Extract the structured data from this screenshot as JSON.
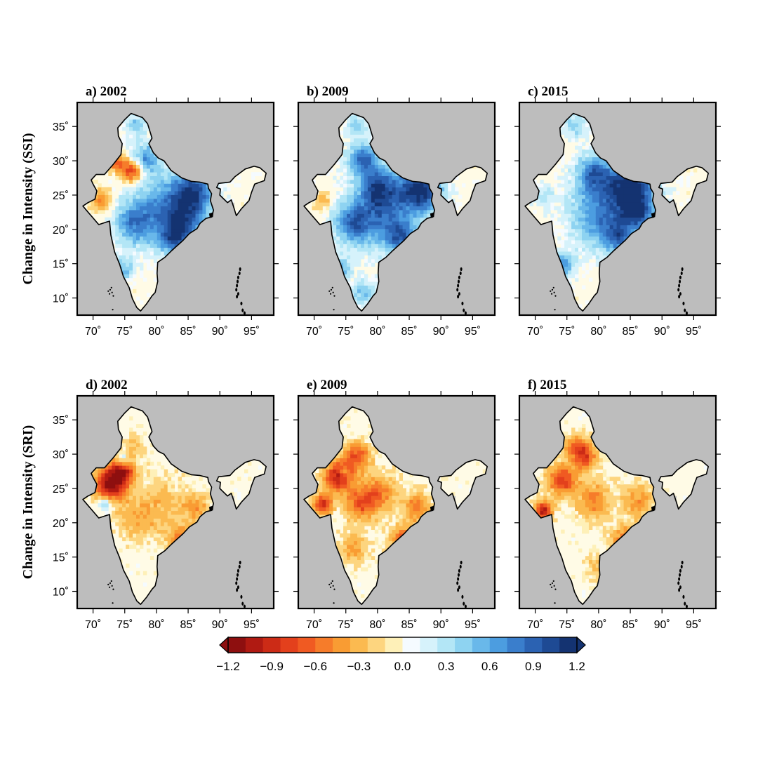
{
  "row_labels": [
    "Change in Intensity (SSI)",
    "Change in Intensity (SRI)"
  ],
  "panels": [
    {
      "id": "a",
      "title": "a) 2002",
      "index": "SSI",
      "year": 2002
    },
    {
      "id": "b",
      "title": "b) 2009",
      "index": "SSI",
      "year": 2009
    },
    {
      "id": "c",
      "title": "c) 2015",
      "index": "SSI",
      "year": 2015
    },
    {
      "id": "d",
      "title": "d) 2002",
      "index": "SRI",
      "year": 2002
    },
    {
      "id": "e",
      "title": "e) 2009",
      "index": "SRI",
      "year": 2009
    },
    {
      "id": "f",
      "title": "f) 2015",
      "index": "SRI",
      "year": 2015
    }
  ],
  "axes": {
    "lon_range": [
      67.5,
      98.5
    ],
    "lat_range": [
      7.5,
      38.5
    ],
    "lon_ticks": [
      70,
      75,
      80,
      85,
      90,
      95
    ],
    "lat_ticks": [
      10,
      15,
      20,
      25,
      30,
      35
    ],
    "lon_tick_labels": [
      "70˚",
      "75˚",
      "80˚",
      "85˚",
      "90˚",
      "95˚"
    ],
    "lat_tick_labels": [
      "10˚",
      "15˚",
      "20˚",
      "25˚",
      "30˚",
      "35˚"
    ]
  },
  "colorbar": {
    "min": -1.2,
    "max": 1.2,
    "tick_values": [
      -1.2,
      -0.9,
      -0.6,
      -0.3,
      0.0,
      0.3,
      0.6,
      0.9,
      1.2
    ],
    "tick_labels": [
      "−1.2",
      "−0.9",
      "−0.6",
      "−0.3",
      "0.0",
      "0.3",
      "0.6",
      "0.9",
      "1.2"
    ],
    "colors": [
      "#8e0f0f",
      "#b01a12",
      "#cc2b16",
      "#e3401c",
      "#f05a22",
      "#f67c2a",
      "#f99c33",
      "#fbba50",
      "#fdd57f",
      "#fef0b8",
      "#f5fbff",
      "#d6f2fb",
      "#b3e6f6",
      "#8ed3f1",
      "#69b8ea",
      "#4c9de0",
      "#3a7ecc",
      "#2b62b2",
      "#1e4a94",
      "#143371"
    ]
  },
  "map_colors": {
    "background": "#bdbdbd",
    "land_base": "#fffbe6",
    "outline": "#000000"
  }
}
